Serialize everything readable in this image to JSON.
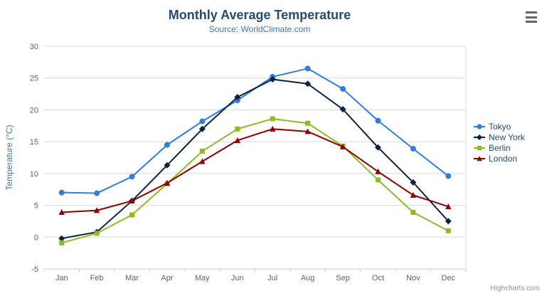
{
  "chart_data": {
    "type": "line",
    "title": "Monthly Average Temperature",
    "subtitle": "Source: WorldClimate.com",
    "xlabel": "",
    "ylabel": "Temperature (°C)",
    "categories": [
      "Jan",
      "Feb",
      "Mar",
      "Apr",
      "May",
      "Jun",
      "Jul",
      "Aug",
      "Sep",
      "Oct",
      "Nov",
      "Dec"
    ],
    "ylim": [
      -5,
      30
    ],
    "yticks": [
      -5,
      0,
      5,
      10,
      15,
      20,
      25,
      30
    ],
    "grid": true,
    "legend_position": "right",
    "series": [
      {
        "name": "Tokyo",
        "color": "#2f7ed8",
        "marker": "circle",
        "values": [
          7.0,
          6.9,
          9.5,
          14.5,
          18.2,
          21.5,
          25.2,
          26.5,
          23.3,
          18.3,
          13.9,
          9.6
        ]
      },
      {
        "name": "New York",
        "color": "#0d233a",
        "marker": "diamond",
        "values": [
          -0.2,
          0.8,
          5.7,
          11.3,
          17.0,
          22.0,
          24.8,
          24.1,
          20.1,
          14.1,
          8.6,
          2.5
        ]
      },
      {
        "name": "Berlin",
        "color": "#8bbc21",
        "marker": "square",
        "values": [
          -0.9,
          0.6,
          3.5,
          8.4,
          13.5,
          17.0,
          18.6,
          17.9,
          14.3,
          9.0,
          3.9,
          1.0
        ]
      },
      {
        "name": "London",
        "color": "#910000",
        "marker": "triangle",
        "values": [
          3.9,
          4.2,
          5.7,
          8.5,
          11.9,
          15.2,
          17.0,
          16.6,
          14.2,
          10.3,
          6.6,
          4.8
        ]
      }
    ],
    "credits": "Highcharts.com",
    "style": {
      "title_color": "#274b6d",
      "subtitle_color": "#4572a7",
      "axis_label_color": "#606060",
      "axis_title_color": "#4572a7",
      "grid_color": "#d8d8d8",
      "axis_line_color": "#c0d0e0",
      "legend_text_color": "#274b6d",
      "credits_color": "#909090",
      "background": "#ffffff"
    }
  }
}
